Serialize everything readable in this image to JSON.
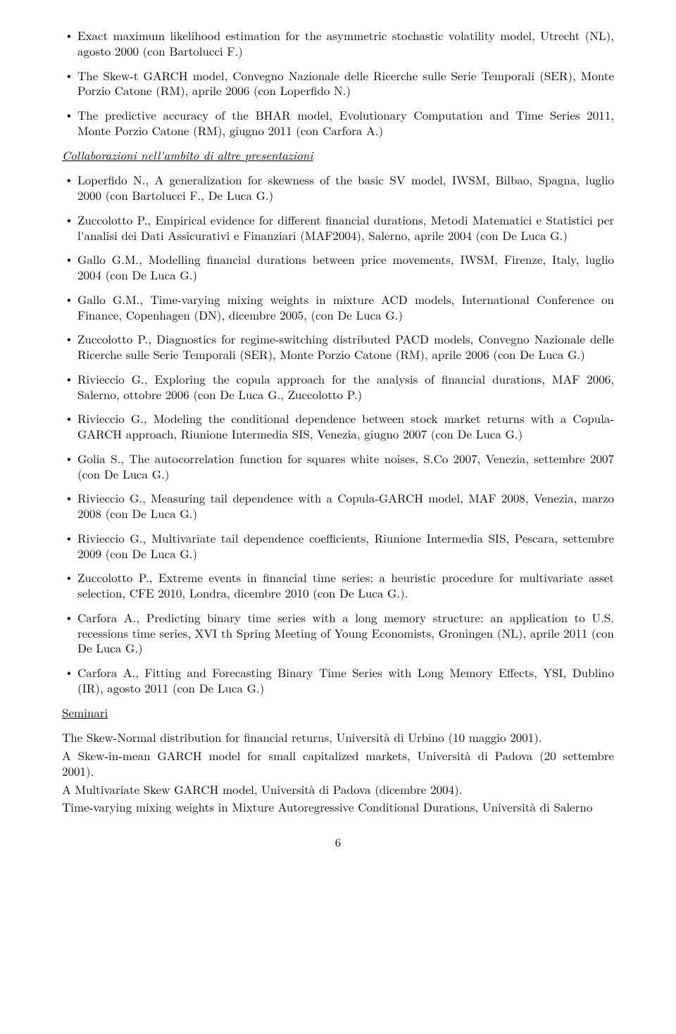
{
  "top_list": [
    "Exact maximum likelihood estimation for the asymmetric stochastic volatility model, Utrecht (NL), agosto 2000 (con Bartolucci F.)",
    "The Skew-t GARCH model, Convegno Nazionale delle Ricerche sulle Serie Temporali (SER), Monte Porzio Catone (RM), aprile 2006 (con Loperfido N.)",
    "The predictive accuracy of the BHAR model, Evolutionary Computation and Time Series 2011, Monte Porzio Catone (RM), giugno 2011 (con Carfora A.)"
  ],
  "section1_heading": "Collaborazioni nell'ambito di altre presentazioni",
  "collab_list": [
    "Loperfido N., A generalization for skewness of the basic SV model, IWSM, Bilbao, Spagna, luglio 2000 (con Bartolucci F., De Luca G.)",
    "Zuccolotto P., Empirical evidence for different financial durations, Metodi Matematici e Statistici per l'analisi dei Dati Assicurativi e Finanziari (MAF2004), Salerno, aprile 2004 (con De Luca G.)",
    "Gallo G.M., Modelling financial durations between price movements, IWSM, Firenze, Italy, luglio 2004 (con De Luca G.)",
    "Gallo G.M., Time-varying mixing weights in mixture ACD models, International Conference on Finance, Copenhagen (DN), dicembre 2005, (con De Luca G.)",
    "Zuccolotto P., Diagnostics for regime-switching distributed PACD models, Convegno Nazionale delle Ricerche sulle Serie Temporali (SER), Monte Porzio Catone (RM), aprile 2006 (con De Luca G.)",
    "Rivieccio G., Exploring the copula approach for the analysis of financial durations, MAF 2006, Salerno, ottobre 2006 (con De Luca G., Zuccolotto P.)",
    "Rivieccio G., Modeling the conditional dependence between stock market returns with a Copula-GARCH approach, Riunione Intermedia SIS, Venezia, giugno 2007 (con De Luca G.)",
    "Golia S., The autocorrelation function for squares white noises, S.Co 2007, Venezia, settembre 2007 (con De Luca G.)",
    "Rivieccio G., Measuring tail dependence with a Copula-GARCH model, MAF 2008, Venezia, marzo 2008 (con De Luca G.)",
    "Rivieccio G., Multivariate tail dependence coefficients, Riunione Intermedia SIS, Pescara, settembre 2009 (con De Luca G.)",
    "Zuccolotto P., Extreme events in financial time series: a heuristic procedure for multivariate asset selection, CFE 2010, Londra, dicembre 2010 (con De Luca G.).",
    "Carfora A., Predicting binary time series with a long memory structure: an application to U.S. recessions time series, XVI th Spring Meeting of Young Economists, Groningen (NL), aprile 2011 (con De Luca G.)",
    "Carfora A., Fitting and Forecasting Binary Time Series with Long Memory Effects, YSI, Dublino (IR), agosto 2011 (con De Luca G.)"
  ],
  "section2_heading": "Seminari",
  "seminari": [
    "The Skew-Normal distribution for financial returns, Università di Urbino (10 maggio 2001).",
    "A Skew-in-mean GARCH model for small capitalized markets, Università di Padova (20 settembre 2001).",
    "A Multivariate Skew GARCH model, Università di Padova (dicembre 2004).",
    "Time-varying mixing weights in Mixture Autoregressive Conditional Durations, Università di Salerno"
  ],
  "page_number": "6"
}
